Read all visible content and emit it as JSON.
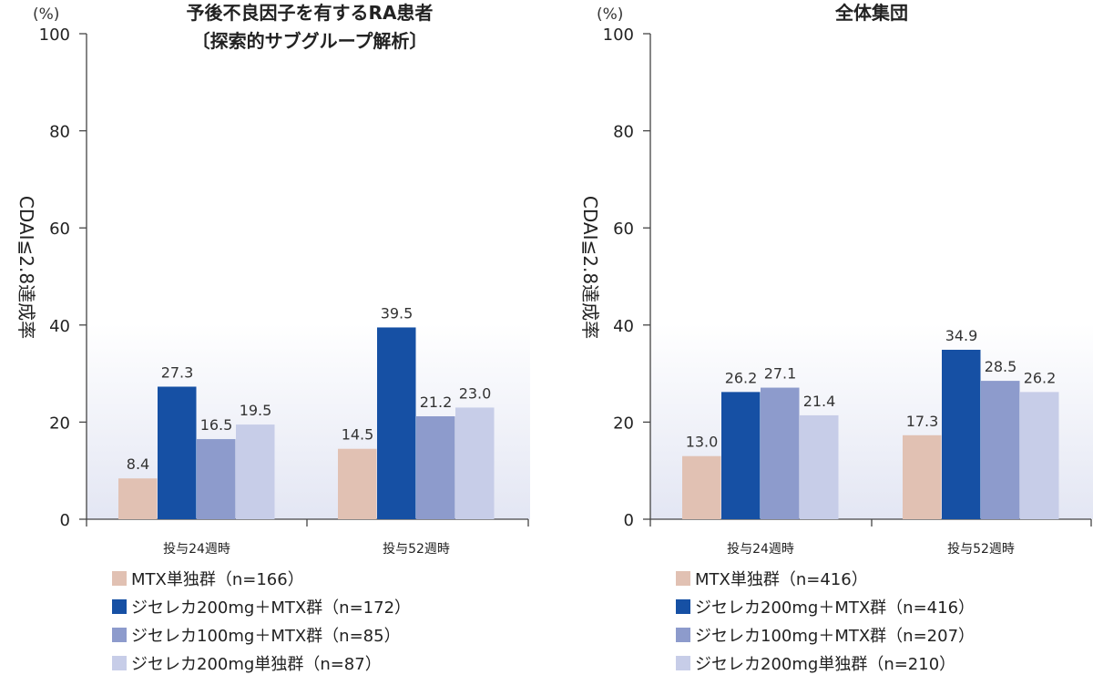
{
  "colors": {
    "mtx": "#e1c1b3",
    "jak200mtx": "#1650a4",
    "jak100mtx": "#8d9bcc",
    "jak200": "#c7cde8"
  },
  "chart_data": [
    {
      "type": "bar",
      "title_lines": [
        "予後不良因子を有するRA患者",
        "〔探索的サブグループ解析〕"
      ],
      "unit": "(%)",
      "ylabel": "CDAI≦2.8達成率",
      "ylim": [
        0,
        100
      ],
      "yticks": [
        "0",
        "20",
        "40",
        "60",
        "80",
        "100"
      ],
      "categories": [
        "投与24週時",
        "投与52週時"
      ],
      "series": [
        {
          "name": "MTX単独群（n=166）",
          "color_key": "mtx",
          "values": [
            8.4,
            14.5
          ],
          "labels": [
            "8.4",
            "14.5"
          ]
        },
        {
          "name": "ジセレカ200mg＋MTX群（n=172）",
          "color_key": "jak200mtx",
          "values": [
            27.3,
            39.5
          ],
          "labels": [
            "27.3",
            "39.5"
          ]
        },
        {
          "name": "ジセレカ100mg＋MTX群（n=85）",
          "color_key": "jak100mtx",
          "values": [
            16.5,
            21.2
          ],
          "labels": [
            "16.5",
            "21.2"
          ]
        },
        {
          "name": "ジセレカ200mg単独群（n=87）",
          "color_key": "jak200",
          "values": [
            19.5,
            23.0
          ],
          "labels": [
            "19.5",
            "23.0"
          ]
        }
      ],
      "grid": false,
      "legend": "bottom"
    },
    {
      "type": "bar",
      "title_lines": [
        "全体集団"
      ],
      "unit": "(%)",
      "ylabel": "CDAI≦2.8達成率",
      "ylim": [
        0,
        100
      ],
      "yticks": [
        "0",
        "20",
        "40",
        "60",
        "80",
        "100"
      ],
      "categories": [
        "投与24週時",
        "投与52週時"
      ],
      "series": [
        {
          "name": "MTX単独群（n=416）",
          "color_key": "mtx",
          "values": [
            13.0,
            17.3
          ],
          "labels": [
            "13.0",
            "17.3"
          ]
        },
        {
          "name": "ジセレカ200mg＋MTX群（n=416）",
          "color_key": "jak200mtx",
          "values": [
            26.2,
            34.9
          ],
          "labels": [
            "26.2",
            "34.9"
          ]
        },
        {
          "name": "ジセレカ100mg＋MTX群（n=207）",
          "color_key": "jak100mtx",
          "values": [
            27.1,
            28.5
          ],
          "labels": [
            "27.1",
            "28.5"
          ]
        },
        {
          "name": "ジセレカ200mg単独群（n=210）",
          "color_key": "jak200",
          "values": [
            21.4,
            26.2
          ],
          "labels": [
            "21.4",
            "26.2"
          ]
        }
      ],
      "grid": false,
      "legend": "bottom"
    }
  ]
}
